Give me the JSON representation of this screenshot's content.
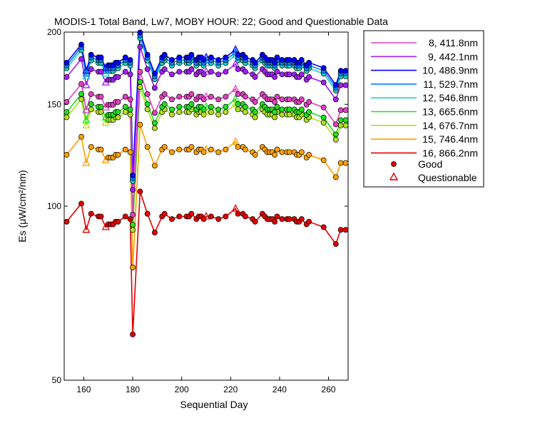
{
  "chart_data": {
    "type": "line",
    "title": "MODIS-1 Total Band,  Lw7, MOBY HOUR: 22;  Good and Questionable Data",
    "xlabel": "Sequential Day",
    "ylabel": "Es (μW/cm²/nm)",
    "xlim": [
      152,
      268
    ],
    "ylim": [
      50,
      200
    ],
    "xticks": [
      160,
      180,
      200,
      220,
      240,
      260
    ],
    "yticks": [
      50,
      100,
      150,
      200
    ],
    "grid": false,
    "legend_position": "outside-right",
    "x": [
      153,
      159,
      161,
      163,
      166,
      167,
      169,
      170,
      171,
      172,
      173,
      174,
      177,
      179,
      180,
      183,
      186,
      189,
      192,
      193,
      196,
      199,
      202,
      203,
      204,
      206,
      207,
      208,
      209,
      210,
      212,
      215,
      218,
      222,
      223,
      225,
      226,
      229,
      230,
      233,
      234,
      235,
      236,
      237,
      238,
      239,
      241,
      243,
      244,
      246,
      247,
      248,
      249,
      251,
      252,
      258,
      263,
      265,
      267
    ],
    "base": [
      94,
      101,
      91,
      97,
      96,
      96,
      92,
      93,
      93,
      93,
      94,
      94,
      96,
      95,
      60,
      106,
      97,
      90,
      96,
      97,
      95,
      96,
      96,
      96,
      97,
      95,
      96,
      96,
      95,
      96,
      96,
      95,
      96,
      99,
      97,
      97,
      96,
      95,
      94,
      97,
      96,
      95,
      95,
      95,
      94,
      96,
      95,
      95,
      95,
      95,
      94,
      94,
      95,
      93,
      94,
      92,
      86,
      91,
      91
    ],
    "series": [
      {
        "name": "8, 411.8nm",
        "color": "#e040c0",
        "offset": 58
      },
      {
        "name": "9, 442.1nm",
        "color": "#a020f0",
        "offset": 74
      },
      {
        "name": "10, 486.9nm",
        "color": "#0000ff",
        "offset": 84
      },
      {
        "name": "11, 529.7nm",
        "color": "#0080ff",
        "offset": 82
      },
      {
        "name": "12, 546.8nm",
        "color": "#20d0c0",
        "offset": 80
      },
      {
        "name": "13, 665.6nm",
        "color": "#20e020",
        "offset": 52
      },
      {
        "name": "14, 676.7nm",
        "color": "#b0e020",
        "offset": 49
      },
      {
        "name": "15, 746.4nm",
        "color": "#ffa000",
        "offset": 29
      },
      {
        "name": "16, 866.2nm",
        "color": "#e00000",
        "offset": 0
      }
    ],
    "questionable_x": [
      161,
      169,
      210,
      222
    ],
    "marker_legend": {
      "good": "Good",
      "questionable": "Questionable"
    }
  }
}
